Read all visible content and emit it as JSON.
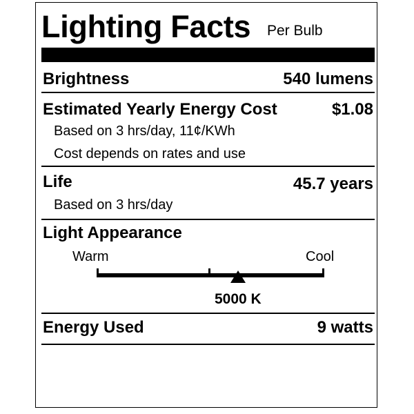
{
  "title": "Lighting Facts",
  "subtitle": "Per Bulb",
  "brightness": {
    "label": "Brightness",
    "value": "540 lumens"
  },
  "energy_cost": {
    "label": "Estimated Yearly Energy Cost",
    "value": "$1.08",
    "notes": [
      "Based on 3 hrs/day, 11¢/KWh",
      "Cost depends on rates and use"
    ]
  },
  "life": {
    "label": "Life",
    "value": "45.7 years",
    "note": "Based on 3 hrs/day"
  },
  "light_appearance": {
    "label": "Light Appearance",
    "warm_label": "Warm",
    "cool_label": "Cool",
    "value": "5000 K",
    "scale_position": 0.62
  },
  "energy_used": {
    "label": "Energy Used",
    "value": "9 watts"
  }
}
